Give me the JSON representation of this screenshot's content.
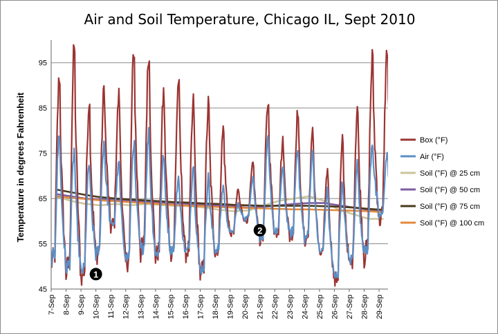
{
  "chart_data": {
    "type": "line",
    "title": "Air and Soil Temperature, Chicago IL, Sept 2010",
    "xlabel": "",
    "ylabel": "Temperature in degrees Fahrenheit",
    "ylim": [
      45,
      100
    ],
    "yticks": [
      "45",
      "55",
      "65",
      "75",
      "85",
      "95"
    ],
    "ytick_values": [
      45,
      55,
      65,
      75,
      85,
      95
    ],
    "categories": [
      "7-Sep",
      "8-Sep",
      "9-Sep",
      "10-Sep",
      "11-Sep",
      "12-Sep",
      "13-Sep",
      "14-Sep",
      "15-Sep",
      "16-Sep",
      "17-Sep",
      "18-Sep",
      "19-Sep",
      "20-Sep",
      "21-Sep",
      "22-Sep",
      "23-Sep",
      "24-Sep",
      "25-Sep",
      "26-Sep",
      "27-Sep",
      "28-Sep",
      "29-Sep"
    ],
    "grid": true,
    "legend": "right",
    "annotations": [
      {
        "label": "1",
        "day": 10.0,
        "value": 48.3
      },
      {
        "label": "2",
        "day": 21.0,
        "value": 58.0
      }
    ],
    "series": [
      {
        "name": "Box (°F)",
        "color": "#9b3533",
        "day_mins": [
          50.5,
          48.5,
          47.5,
          52,
          58.5,
          50.5,
          53,
          52,
          53,
          52.5,
          48,
          53,
          57,
          60,
          56,
          57,
          56.5,
          55.5,
          52.5,
          46.5,
          50,
          52,
          60
        ],
        "day_maxs": [
          93,
          99.5,
          87.5,
          90,
          88.5,
          99,
          98,
          89,
          92,
          87,
          86.5,
          81,
          67,
          73,
          87,
          78,
          85,
          80,
          72,
          78,
          86,
          97,
          99
        ]
      },
      {
        "name": "Air (°F)",
        "color": "#5b8fc6",
        "day_mins": [
          51.5,
          49.5,
          48.5,
          52.5,
          59,
          51.5,
          53.5,
          52.5,
          53.5,
          53,
          49,
          53.5,
          57.5,
          60.5,
          56.5,
          57.5,
          57,
          56,
          53,
          47.5,
          51,
          53,
          61
        ],
        "day_maxs": [
          80,
          76,
          73,
          78,
          73,
          78,
          80,
          75,
          70,
          73,
          70,
          68,
          64,
          70,
          78,
          72,
          77,
          76,
          67,
          69,
          73,
          78,
          75
        ]
      },
      {
        "name": "Soil (°F) @ 25 cm",
        "color": "#c9c59a",
        "x": [
          7,
          8,
          9,
          10,
          11,
          12,
          13,
          14,
          15,
          16,
          17,
          18,
          19,
          20,
          21,
          22,
          23,
          24,
          25,
          26,
          27,
          28,
          29
        ],
        "values": [
          65.5,
          64.5,
          63.8,
          63.5,
          63.8,
          63.5,
          63.8,
          63.6,
          63.4,
          63.3,
          63,
          62.5,
          62.2,
          62.4,
          63.5,
          64.5,
          65,
          65.5,
          64.5,
          62.5,
          61.5,
          60.5,
          60.5
        ]
      },
      {
        "name": "Soil (°F) @ 50 cm",
        "color": "#7f5aa2",
        "x": [
          7,
          8,
          9,
          10,
          11,
          12,
          13,
          14,
          15,
          16,
          17,
          18,
          19,
          20,
          21,
          22,
          23,
          24,
          25,
          26,
          27,
          28,
          29
        ],
        "values": [
          66,
          65.5,
          65,
          64.8,
          64.6,
          64.5,
          64.3,
          64.2,
          64,
          63.8,
          63.6,
          63.4,
          63.2,
          63,
          63.2,
          63.5,
          63.8,
          64,
          64,
          63.5,
          63,
          62.5,
          62
        ]
      },
      {
        "name": "Soil (°F) @ 75 cm",
        "color": "#4a3b1c",
        "x": [
          7,
          8,
          9,
          10,
          11,
          12,
          13,
          14,
          15,
          16,
          17,
          18,
          19,
          20,
          21,
          22,
          23,
          24,
          25,
          26,
          27,
          28,
          29
        ],
        "values": [
          67,
          66.4,
          65.8,
          65.3,
          65,
          64.8,
          64.6,
          64.4,
          64.2,
          64.1,
          63.9,
          63.8,
          63.6,
          63.5,
          63.4,
          63.4,
          63.4,
          63.4,
          63.3,
          63.2,
          63,
          62.7,
          62.5
        ]
      },
      {
        "name": "Soil (°F) @ 100 cm",
        "color": "#e28a3e",
        "x": [
          7,
          8,
          9,
          10,
          11,
          12,
          13,
          14,
          15,
          16,
          17,
          18,
          19,
          20,
          21,
          22,
          23,
          24,
          25,
          26,
          27,
          28,
          29
        ],
        "values": [
          65.5,
          65.2,
          64.9,
          64.6,
          64.4,
          64.2,
          64,
          63.8,
          63.6,
          63.4,
          63.3,
          63.1,
          63,
          62.9,
          62.8,
          62.7,
          62.6,
          62.6,
          62.5,
          62.4,
          62.3,
          62.2,
          62
        ]
      }
    ]
  }
}
